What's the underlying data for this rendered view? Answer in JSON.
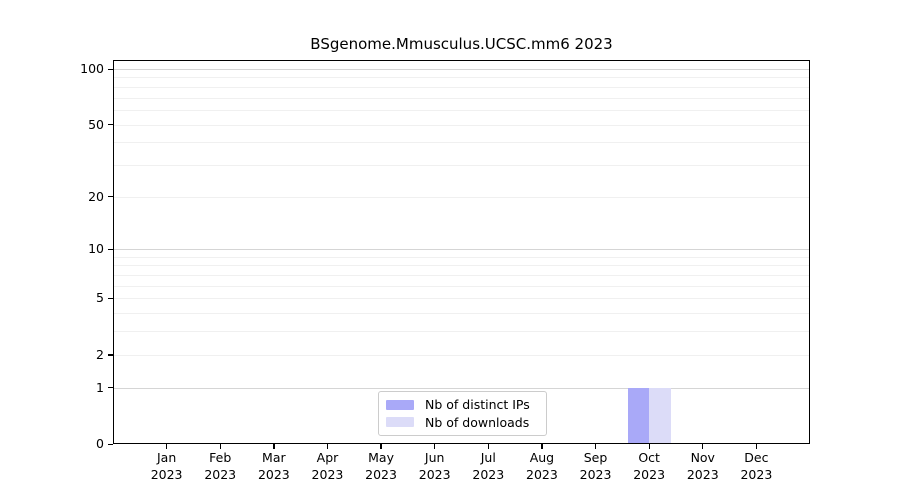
{
  "chart_data": {
    "type": "bar",
    "title": "BSgenome.Mmusculus.UCSC.mm6 2023",
    "categories": [
      {
        "month": "Jan",
        "year": "2023"
      },
      {
        "month": "Feb",
        "year": "2023"
      },
      {
        "month": "Mar",
        "year": "2023"
      },
      {
        "month": "Apr",
        "year": "2023"
      },
      {
        "month": "May",
        "year": "2023"
      },
      {
        "month": "Jun",
        "year": "2023"
      },
      {
        "month": "Jul",
        "year": "2023"
      },
      {
        "month": "Aug",
        "year": "2023"
      },
      {
        "month": "Sep",
        "year": "2023"
      },
      {
        "month": "Oct",
        "year": "2023"
      },
      {
        "month": "Nov",
        "year": "2023"
      },
      {
        "month": "Dec",
        "year": "2023"
      }
    ],
    "series": [
      {
        "name": "Nb of distinct IPs",
        "color": "#a9a9f8",
        "values": [
          0,
          0,
          0,
          0,
          0,
          0,
          0,
          0,
          0,
          1,
          0,
          0
        ]
      },
      {
        "name": "Nb of downloads",
        "color": "#dcdcf8",
        "values": [
          0,
          0,
          0,
          0,
          0,
          0,
          0,
          0,
          0,
          1,
          0,
          0
        ]
      }
    ],
    "xlabel": "",
    "ylabel": "",
    "yscale": "log1p",
    "ylim": [
      0,
      110
    ],
    "yticks": [
      0,
      1,
      2,
      5,
      10,
      20,
      50,
      100
    ],
    "major_gridlines": [
      1,
      10,
      100
    ],
    "minor_gridlines": [
      2,
      3,
      4,
      5,
      6,
      7,
      8,
      9,
      20,
      30,
      40,
      50,
      60,
      70,
      80,
      90
    ],
    "grid": "horizontal",
    "legend_position": "bottom-center",
    "colors": {
      "distinct_ips": "#a9a9f8",
      "downloads": "#dcdcf8",
      "major_grid": "#d5d5d5",
      "minor_grid": "#f0f0f0",
      "axis": "#000000"
    }
  }
}
